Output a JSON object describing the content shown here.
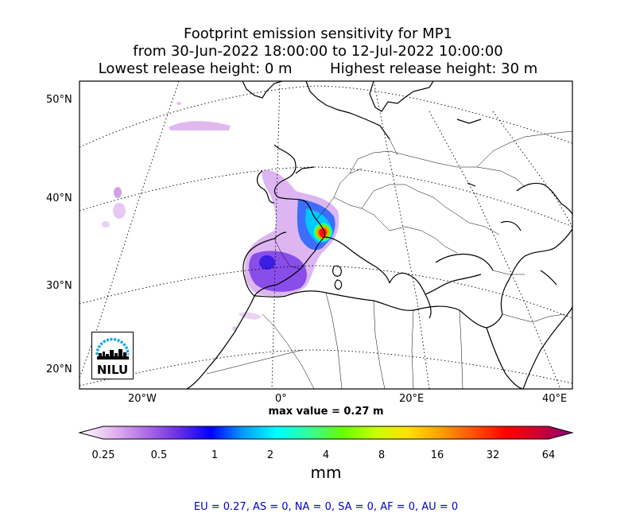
{
  "title": {
    "line1": "Footprint emission sensitivity for MP1",
    "line2": "from 30-Jun-2022 18:00:00 to 12-Jul-2022 10:00:00",
    "line3_left": "Lowest release height: 0 m",
    "line3_right": "Highest release height: 30 m"
  },
  "map": {
    "lat_labels": [
      "50°N",
      "40°N",
      "30°N",
      "20°N"
    ],
    "lon_labels": [
      "20°W",
      "0°",
      "20°E",
      "40°E"
    ],
    "logo_text": "NILU",
    "logo_color": "#1aa3e6"
  },
  "max_value": "max value = 0.27 m",
  "colorbar": {
    "ticks": [
      "0.25",
      "0.5",
      "1",
      "2",
      "4",
      "8",
      "16",
      "32",
      "64"
    ],
    "unit": "mm",
    "colors": [
      "#ffffff",
      "#e4b8ee",
      "#b06ee6",
      "#6a2fe6",
      "#0000ff",
      "#00a0ff",
      "#00ffff",
      "#33ff99",
      "#66ff00",
      "#c8ff00",
      "#ffe000",
      "#ffa000",
      "#ff5000",
      "#ff0000",
      "#cc0033",
      "#880077"
    ]
  },
  "region_summary": "EU = 0.27,  AS = 0,  NA = 0,  SA = 0,  AF = 0,  AU = 0"
}
